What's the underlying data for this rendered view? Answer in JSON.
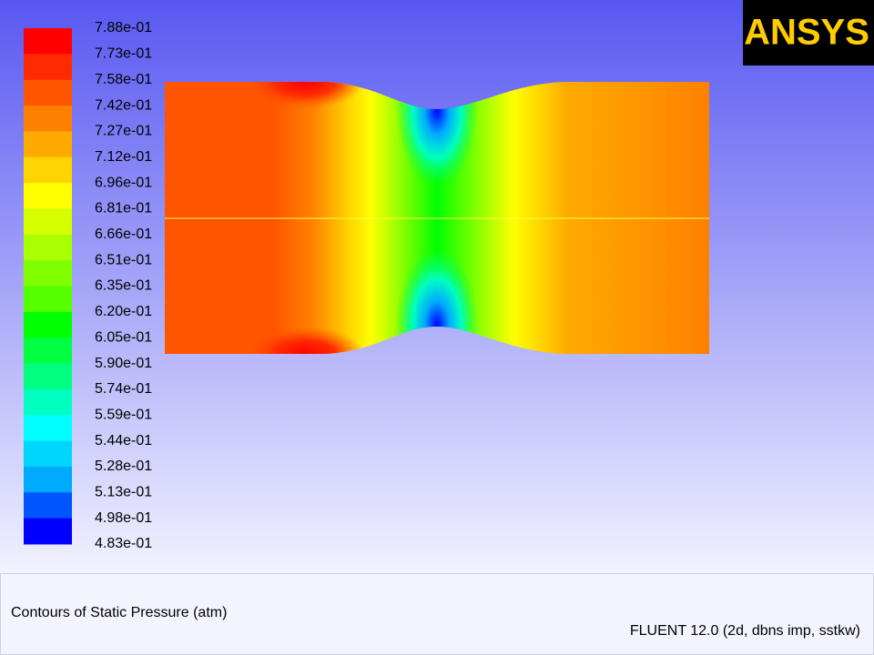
{
  "logo": "ANSYS",
  "legend": {
    "labels": [
      "7.88e-01",
      "7.73e-01",
      "7.58e-01",
      "7.42e-01",
      "7.27e-01",
      "7.12e-01",
      "6.96e-01",
      "6.81e-01",
      "6.66e-01",
      "6.51e-01",
      "6.35e-01",
      "6.20e-01",
      "6.05e-01",
      "5.90e-01",
      "5.74e-01",
      "5.59e-01",
      "5.44e-01",
      "5.28e-01",
      "5.13e-01",
      "4.98e-01",
      "4.83e-01"
    ],
    "colors": [
      "#ff0000",
      "#ff2b00",
      "#ff5500",
      "#ff8000",
      "#ffaa00",
      "#ffd500",
      "#ffff00",
      "#d5ff00",
      "#aaff00",
      "#80ff00",
      "#55ff00",
      "#00ff00",
      "#00ff40",
      "#00ff80",
      "#00ffc0",
      "#00ffff",
      "#00d5ff",
      "#00aaff",
      "#0055ff",
      "#0000ff"
    ]
  },
  "footer": {
    "title": "Contours of Static Pressure (atm)",
    "version": "FLUENT 12.0 (2d, dbns imp, sstkw)"
  }
}
